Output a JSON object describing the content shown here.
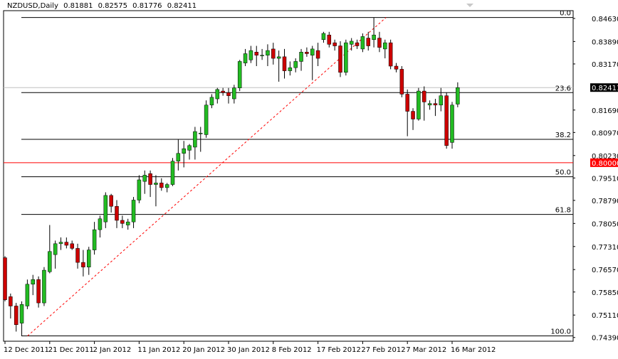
{
  "header": {
    "symbol": "NZDUSD,Daily",
    "open": "0.81881",
    "high": "0.82575",
    "low": "0.81776",
    "close": "0.82411"
  },
  "colors": {
    "background": "#ffffff",
    "up_candle": "#22bb22",
    "down_candle": "#cc0000",
    "wick": "#000000",
    "fib_lines": "#000000",
    "trend_line": "#ff0000",
    "level_line": "#ff0000",
    "last_price_tag": "#000000",
    "level_tag": "#ff0000",
    "current_price_line": "#c0c0c0"
  },
  "chart_data": {
    "type": "candlestick",
    "title": "NZDUSD,Daily",
    "ylim": [
      0.7427,
      0.8488
    ],
    "y_ticks": [
      "0.84630",
      "0.83890",
      "0.83170",
      "0.82411",
      "0.81690",
      "0.80970",
      "0.80230",
      "0.80000",
      "0.79510",
      "0.78790",
      "0.78050",
      "0.77310",
      "0.76570",
      "0.75850",
      "0.75110",
      "0.74390"
    ],
    "x_ticks": [
      {
        "label": "12 Dec 2011",
        "index": 0
      },
      {
        "label": "21 Dec 2011",
        "index": 8
      },
      {
        "label": "2 Jan 2012",
        "index": 16
      },
      {
        "label": "11 Jan 2012",
        "index": 24
      },
      {
        "label": "20 Jan 2012",
        "index": 32
      },
      {
        "label": "30 Jan 2012",
        "index": 40
      },
      {
        "label": "8 Feb 2012",
        "index": 48
      },
      {
        "label": "17 Feb 2012",
        "index": 56
      },
      {
        "label": "27 Feb 2012",
        "index": 64
      },
      {
        "label": "7 Mar 2012",
        "index": 72
      },
      {
        "label": "16 Mar 2012",
        "index": 80
      }
    ],
    "last_price": {
      "value": 0.82411,
      "label": "0.82411"
    },
    "horizontal_level": {
      "value": 0.8,
      "label": "0.80000"
    },
    "fibonacci": {
      "high": 0.8466,
      "low": 0.7444,
      "levels": [
        {
          "label": "0.0",
          "value": 0.8466
        },
        {
          "label": "23.6",
          "value": 0.8225
        },
        {
          "label": "38.2",
          "value": 0.8075
        },
        {
          "label": "50.0",
          "value": 0.7955
        },
        {
          "label": "61.8",
          "value": 0.7834
        },
        {
          "label": "100.0",
          "value": 0.7444
        }
      ]
    },
    "trend_line": {
      "from": {
        "index": 2,
        "value": 0.7444
      },
      "to": {
        "index": 66,
        "value": 0.8466
      }
    },
    "candles": [
      {
        "o": 0.7695,
        "h": 0.77,
        "l": 0.7555,
        "c": 0.756
      },
      {
        "o": 0.757,
        "h": 0.758,
        "l": 0.75,
        "c": 0.754
      },
      {
        "o": 0.754,
        "h": 0.755,
        "l": 0.7458,
        "c": 0.748
      },
      {
        "o": 0.7485,
        "h": 0.7555,
        "l": 0.7444,
        "c": 0.7545
      },
      {
        "o": 0.754,
        "h": 0.7625,
        "l": 0.753,
        "c": 0.761
      },
      {
        "o": 0.761,
        "h": 0.764,
        "l": 0.7575,
        "c": 0.7625
      },
      {
        "o": 0.7625,
        "h": 0.7635,
        "l": 0.7535,
        "c": 0.755
      },
      {
        "o": 0.755,
        "h": 0.7665,
        "l": 0.754,
        "c": 0.7655
      },
      {
        "o": 0.765,
        "h": 0.78,
        "l": 0.7645,
        "c": 0.7715
      },
      {
        "o": 0.7705,
        "h": 0.775,
        "l": 0.766,
        "c": 0.774
      },
      {
        "o": 0.774,
        "h": 0.776,
        "l": 0.772,
        "c": 0.7745
      },
      {
        "o": 0.7745,
        "h": 0.776,
        "l": 0.7725,
        "c": 0.7735
      },
      {
        "o": 0.774,
        "h": 0.775,
        "l": 0.772,
        "c": 0.7725
      },
      {
        "o": 0.7725,
        "h": 0.774,
        "l": 0.766,
        "c": 0.768
      },
      {
        "o": 0.768,
        "h": 0.772,
        "l": 0.7635,
        "c": 0.7665
      },
      {
        "o": 0.7665,
        "h": 0.773,
        "l": 0.764,
        "c": 0.772
      },
      {
        "o": 0.772,
        "h": 0.781,
        "l": 0.7705,
        "c": 0.7785
      },
      {
        "o": 0.7785,
        "h": 0.783,
        "l": 0.776,
        "c": 0.782
      },
      {
        "o": 0.781,
        "h": 0.7905,
        "l": 0.779,
        "c": 0.7895
      },
      {
        "o": 0.7895,
        "h": 0.79,
        "l": 0.784,
        "c": 0.786
      },
      {
        "o": 0.786,
        "h": 0.788,
        "l": 0.779,
        "c": 0.7815
      },
      {
        "o": 0.7815,
        "h": 0.783,
        "l": 0.779,
        "c": 0.7805
      },
      {
        "o": 0.78,
        "h": 0.782,
        "l": 0.7785,
        "c": 0.781
      },
      {
        "o": 0.781,
        "h": 0.789,
        "l": 0.779,
        "c": 0.788
      },
      {
        "o": 0.788,
        "h": 0.796,
        "l": 0.787,
        "c": 0.7945
      },
      {
        "o": 0.794,
        "h": 0.7975,
        "l": 0.79,
        "c": 0.796
      },
      {
        "o": 0.7965,
        "h": 0.7975,
        "l": 0.789,
        "c": 0.793
      },
      {
        "o": 0.793,
        "h": 0.796,
        "l": 0.786,
        "c": 0.7935
      },
      {
        "o": 0.7935,
        "h": 0.795,
        "l": 0.791,
        "c": 0.792
      },
      {
        "o": 0.792,
        "h": 0.7935,
        "l": 0.7905,
        "c": 0.793
      },
      {
        "o": 0.793,
        "h": 0.8015,
        "l": 0.7925,
        "c": 0.8005
      },
      {
        "o": 0.8005,
        "h": 0.8075,
        "l": 0.7975,
        "c": 0.803
      },
      {
        "o": 0.803,
        "h": 0.807,
        "l": 0.7985,
        "c": 0.8045
      },
      {
        "o": 0.804,
        "h": 0.806,
        "l": 0.801,
        "c": 0.8055
      },
      {
        "o": 0.805,
        "h": 0.8115,
        "l": 0.801,
        "c": 0.81
      },
      {
        "o": 0.8095,
        "h": 0.8115,
        "l": 0.8035,
        "c": 0.8095
      },
      {
        "o": 0.809,
        "h": 0.82,
        "l": 0.808,
        "c": 0.8185
      },
      {
        "o": 0.8185,
        "h": 0.822,
        "l": 0.8175,
        "c": 0.821
      },
      {
        "o": 0.8205,
        "h": 0.824,
        "l": 0.819,
        "c": 0.8235
      },
      {
        "o": 0.823,
        "h": 0.824,
        "l": 0.8215,
        "c": 0.8225
      },
      {
        "o": 0.8225,
        "h": 0.824,
        "l": 0.819,
        "c": 0.8215
      },
      {
        "o": 0.8205,
        "h": 0.825,
        "l": 0.819,
        "c": 0.824
      },
      {
        "o": 0.824,
        "h": 0.833,
        "l": 0.823,
        "c": 0.8325
      },
      {
        "o": 0.832,
        "h": 0.8365,
        "l": 0.831,
        "c": 0.835
      },
      {
        "o": 0.833,
        "h": 0.8375,
        "l": 0.832,
        "c": 0.836
      },
      {
        "o": 0.8355,
        "h": 0.8375,
        "l": 0.831,
        "c": 0.8345
      },
      {
        "o": 0.8345,
        "h": 0.8365,
        "l": 0.833,
        "c": 0.8345
      },
      {
        "o": 0.8345,
        "h": 0.838,
        "l": 0.831,
        "c": 0.836
      },
      {
        "o": 0.8365,
        "h": 0.8385,
        "l": 0.8315,
        "c": 0.8335
      },
      {
        "o": 0.8335,
        "h": 0.836,
        "l": 0.826,
        "c": 0.834
      },
      {
        "o": 0.834,
        "h": 0.8365,
        "l": 0.827,
        "c": 0.8295
      },
      {
        "o": 0.8295,
        "h": 0.8325,
        "l": 0.828,
        "c": 0.8305
      },
      {
        "o": 0.8305,
        "h": 0.8335,
        "l": 0.829,
        "c": 0.8325
      },
      {
        "o": 0.8325,
        "h": 0.8365,
        "l": 0.8295,
        "c": 0.8355
      },
      {
        "o": 0.8355,
        "h": 0.837,
        "l": 0.834,
        "c": 0.835
      },
      {
        "o": 0.8345,
        "h": 0.8375,
        "l": 0.8265,
        "c": 0.8365
      },
      {
        "o": 0.836,
        "h": 0.8385,
        "l": 0.831,
        "c": 0.8335
      },
      {
        "o": 0.8395,
        "h": 0.842,
        "l": 0.8385,
        "c": 0.8415
      },
      {
        "o": 0.841,
        "h": 0.842,
        "l": 0.837,
        "c": 0.838
      },
      {
        "o": 0.8385,
        "h": 0.8395,
        "l": 0.836,
        "c": 0.8375
      },
      {
        "o": 0.8375,
        "h": 0.839,
        "l": 0.8275,
        "c": 0.829
      },
      {
        "o": 0.829,
        "h": 0.8395,
        "l": 0.828,
        "c": 0.8385
      },
      {
        "o": 0.838,
        "h": 0.84,
        "l": 0.836,
        "c": 0.839
      },
      {
        "o": 0.8385,
        "h": 0.8395,
        "l": 0.8365,
        "c": 0.8375
      },
      {
        "o": 0.8365,
        "h": 0.8415,
        "l": 0.8355,
        "c": 0.8405
      },
      {
        "o": 0.84,
        "h": 0.842,
        "l": 0.836,
        "c": 0.8375
      },
      {
        "o": 0.8395,
        "h": 0.8466,
        "l": 0.837,
        "c": 0.841
      },
      {
        "o": 0.84,
        "h": 0.842,
        "l": 0.8355,
        "c": 0.837
      },
      {
        "o": 0.8365,
        "h": 0.8395,
        "l": 0.8335,
        "c": 0.8385
      },
      {
        "o": 0.8385,
        "h": 0.8395,
        "l": 0.83,
        "c": 0.831
      },
      {
        "o": 0.831,
        "h": 0.832,
        "l": 0.829,
        "c": 0.83
      },
      {
        "o": 0.83,
        "h": 0.831,
        "l": 0.821,
        "c": 0.822
      },
      {
        "o": 0.822,
        "h": 0.8235,
        "l": 0.8085,
        "c": 0.8165
      },
      {
        "o": 0.8165,
        "h": 0.8175,
        "l": 0.8105,
        "c": 0.814
      },
      {
        "o": 0.814,
        "h": 0.824,
        "l": 0.8135,
        "c": 0.823
      },
      {
        "o": 0.823,
        "h": 0.8245,
        "l": 0.8135,
        "c": 0.8195
      },
      {
        "o": 0.8185,
        "h": 0.82,
        "l": 0.817,
        "c": 0.819
      },
      {
        "o": 0.819,
        "h": 0.8205,
        "l": 0.815,
        "c": 0.8185
      },
      {
        "o": 0.8185,
        "h": 0.824,
        "l": 0.8165,
        "c": 0.8215
      },
      {
        "o": 0.8215,
        "h": 0.8225,
        "l": 0.8045,
        "c": 0.8055
      },
      {
        "o": 0.8065,
        "h": 0.8195,
        "l": 0.8045,
        "c": 0.8185
      },
      {
        "o": 0.8188,
        "h": 0.8258,
        "l": 0.8178,
        "c": 0.8241
      }
    ]
  }
}
